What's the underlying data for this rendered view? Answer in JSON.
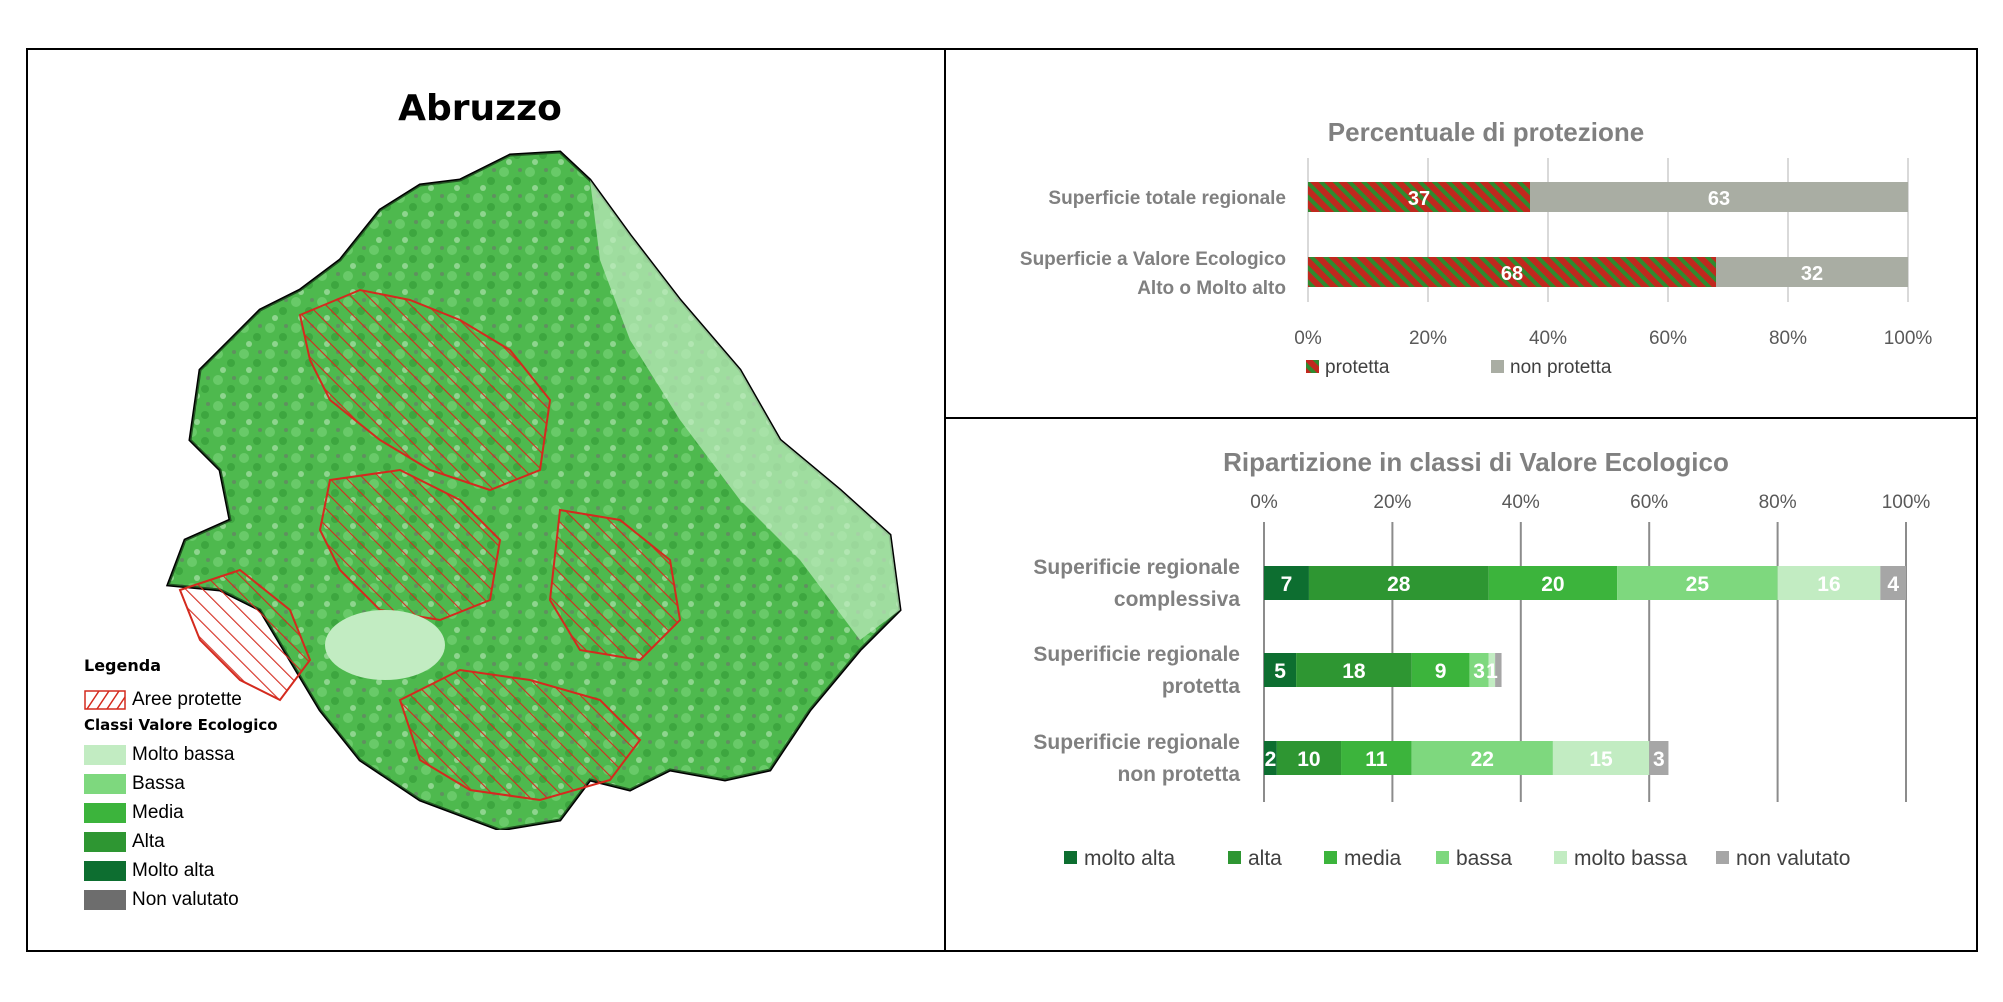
{
  "map": {
    "title": "Abruzzo",
    "legend": {
      "title": "Legenda",
      "protected_label": "Aree protette",
      "classes_title": "Classi Valore Ecologico",
      "items": [
        {
          "label": "Molto bassa",
          "color": "#c2ecc2"
        },
        {
          "label": "Bassa",
          "color": "#7ed87e"
        },
        {
          "label": "Media",
          "color": "#3cb43c"
        },
        {
          "label": "Alta",
          "color": "#2e9632"
        },
        {
          "label": "Molto alta",
          "color": "#0d6e30"
        },
        {
          "label": "Non valutato",
          "color": "#6d6d6d"
        }
      ]
    }
  },
  "chart_data": [
    {
      "type": "bar",
      "title": "Percentuale di protezione",
      "orientation": "horizontal-stacked-100",
      "categories": [
        "Superficie totale regionale",
        "Superficie a Valore Ecologico Alto o Molto alto"
      ],
      "category_lines": [
        [
          "Superficie totale regionale"
        ],
        [
          "Superficie a Valore Ecologico",
          "Alto o Molto alto"
        ]
      ],
      "series": [
        {
          "name": "protetta",
          "values": [
            37,
            68
          ],
          "color": "#c0281e",
          "pattern": "hatched-green"
        },
        {
          "name": "non protetta",
          "values": [
            63,
            32
          ],
          "color": "#a9ada3"
        }
      ],
      "xticks": [
        "0%",
        "20%",
        "40%",
        "60%",
        "80%",
        "100%"
      ],
      "xlim": [
        0,
        100
      ],
      "grid": true,
      "legend": "bottom"
    },
    {
      "type": "bar",
      "title": "Ripartizione in classi di Valore Ecologico",
      "orientation": "horizontal-stacked",
      "categories": [
        "Superificie regionale complessiva",
        "Superificie regionale protetta",
        "Superificie regionale non protetta"
      ],
      "category_lines": [
        [
          "Superificie regionale",
          "complessiva"
        ],
        [
          "Superificie regionale",
          "protetta"
        ],
        [
          "Superificie regionale",
          "non protetta"
        ]
      ],
      "series": [
        {
          "name": "molto alta",
          "values": [
            7,
            5,
            2
          ],
          "color": "#0d6e30"
        },
        {
          "name": "alta",
          "values": [
            28,
            18,
            10
          ],
          "color": "#2e9632"
        },
        {
          "name": "media",
          "values": [
            20,
            9,
            11
          ],
          "color": "#3cb43c"
        },
        {
          "name": "bassa",
          "values": [
            25,
            3,
            22
          ],
          "color": "#7ed87e"
        },
        {
          "name": "molto bassa",
          "values": [
            16,
            1,
            15
          ],
          "color": "#c2ecc2"
        },
        {
          "name": "non valutato",
          "values": [
            4,
            1,
            3
          ],
          "color": "#a6a6a6"
        }
      ],
      "data_labels": [
        [
          "7",
          "28",
          "20",
          "25",
          "16",
          "4"
        ],
        [
          "5",
          "18",
          "9",
          "3",
          "1",
          ""
        ],
        [
          "2",
          "10",
          "11",
          "22",
          "15",
          "3"
        ]
      ],
      "xticks": [
        "0%",
        "20%",
        "40%",
        "60%",
        "80%",
        "100%"
      ],
      "xlim": [
        0,
        100
      ],
      "grid": true,
      "legend": "bottom"
    }
  ]
}
